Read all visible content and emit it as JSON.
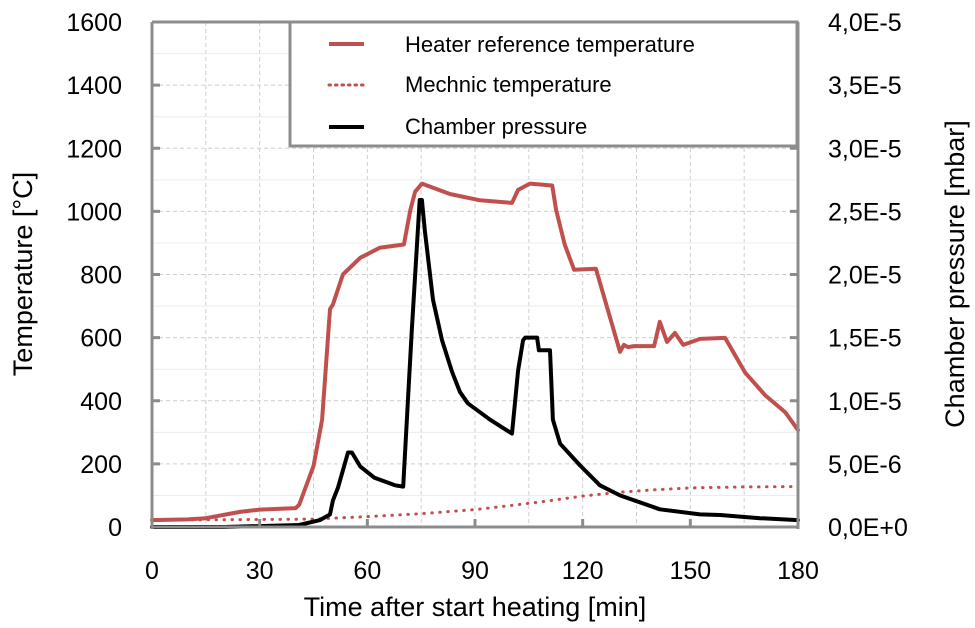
{
  "chart_data": {
    "type": "line",
    "title": "",
    "xlabel": "Time after start heating [min]",
    "ylabel": "Temperature [°C]",
    "y2label": "Chamber pressure [mbar]",
    "xlim": [
      0,
      180
    ],
    "ylim": [
      0,
      1600
    ],
    "y2lim": [
      0,
      4e-05
    ],
    "x_ticks": [
      0,
      30,
      60,
      90,
      120,
      150,
      180
    ],
    "x_tick_labels": [
      "0",
      "30",
      "60",
      "90",
      "120",
      "150",
      "180"
    ],
    "y_ticks": [
      0,
      200,
      400,
      600,
      800,
      1000,
      1200,
      1400,
      1600
    ],
    "y_tick_labels": [
      "0",
      "200",
      "400",
      "600",
      "800",
      "1000",
      "1200",
      "1400",
      "1600"
    ],
    "y2_ticks": [
      0,
      5e-06,
      1e-05,
      1.5e-05,
      2e-05,
      2.5e-05,
      3e-05,
      3.5e-05,
      4e-05
    ],
    "y2_tick_labels": [
      "0,0E+0",
      "5,0E-6",
      "1,0E-5",
      "1,5E-5",
      "2,0E-5",
      "2,5E-5",
      "3,0E-5",
      "3,5E-5",
      "4,0E-5"
    ],
    "grid": true,
    "legend_position": "top-right",
    "series": [
      {
        "name": "Heater reference temperature",
        "axis": "left",
        "style": "solid",
        "color": "#c0504d",
        "x": [
          0,
          10,
          15,
          24.5,
          30,
          40,
          41,
          45,
          47.4,
          49.6,
          50.4,
          53.2,
          58,
          63.5,
          70.2,
          72,
          73.3,
          75.2,
          83,
          91.4,
          100.3,
          102,
          105.3,
          111.5,
          112.6,
          115,
          117.6,
          123.7,
          126.2,
          130.4,
          131.5,
          132.6,
          134.3,
          139.9,
          141.5,
          143.5,
          145.7,
          148,
          152.7,
          159.7,
          165.2,
          170.8,
          176.4,
          180
        ],
        "y": [
          22,
          24,
          28,
          48,
          55,
          60,
          70,
          193,
          340,
          690,
          705,
          800,
          853,
          885,
          895,
          1005,
          1062,
          1088,
          1055,
          1035,
          1027,
          1068,
          1088,
          1082,
          1005,
          895,
          815,
          818,
          720,
          555,
          577,
          570,
          573,
          573,
          650,
          586,
          615,
          577,
          596,
          599,
          490,
          418,
          364,
          307
        ]
      },
      {
        "name": "Mechnic temperature",
        "axis": "left",
        "style": "dotted",
        "color": "#c0504d",
        "x": [
          0,
          20,
          45,
          60,
          75,
          90,
          100,
          110,
          120,
          130,
          140,
          150,
          165,
          180
        ],
        "y": [
          22,
          23,
          25,
          33,
          42,
          55,
          68,
          82,
          98,
          110,
          118,
          124,
          127,
          128
        ]
      },
      {
        "name": "Chamber pressure",
        "axis": "right",
        "style": "solid",
        "color": "#000000",
        "x": [
          0,
          20,
          40,
          41,
          46.8,
          49.6,
          50.4,
          51.8,
          54.6,
          55.7,
          58,
          62,
          67.7,
          70,
          71.3,
          72.4,
          74.6,
          75.2,
          76,
          78.3,
          80.8,
          83.6,
          85.8,
          88,
          94.2,
          100.3,
          102,
          103.4,
          104,
          107.3,
          107.8,
          110.9,
          111.7,
          113.7,
          119.2,
          124.8,
          130.4,
          141.5,
          152.7,
          158.3,
          169.4,
          180
        ],
        "y": [
          0,
          0,
          1.5e-07,
          1.6e-07,
          5.5e-07,
          1e-06,
          2.1e-06,
          3.1e-06,
          5.9e-06,
          5.9e-06,
          4.8e-06,
          3.9e-06,
          3.3e-06,
          3.2e-06,
          1e-05,
          1.56e-05,
          2.59e-05,
          2.59e-05,
          2.35e-05,
          1.8e-05,
          1.48e-05,
          1.23e-05,
          1.07e-05,
          9.8e-06,
          8.5e-06,
          7.4e-06,
          1.24e-05,
          1.48e-05,
          1.5e-05,
          1.5e-05,
          1.4e-05,
          1.4e-05,
          8.5e-06,
          6.6e-06,
          4.9e-06,
          3.3e-06,
          2.5e-06,
          1.4e-06,
          1e-06,
          9.5e-07,
          7e-07,
          5.5e-07
        ]
      }
    ]
  },
  "legend": {
    "items": [
      {
        "label": "Heater reference temperature",
        "style": "solid",
        "color": "#c0504d"
      },
      {
        "label": "Mechnic temperature",
        "style": "dotted",
        "color": "#c0504d"
      },
      {
        "label": "Chamber pressure",
        "style": "solid",
        "color": "#000000"
      }
    ]
  },
  "colors": {
    "axis": "#8c8c8c",
    "grid": "#cfcfcf",
    "heater": "#c0504d",
    "pressure": "#000000"
  }
}
